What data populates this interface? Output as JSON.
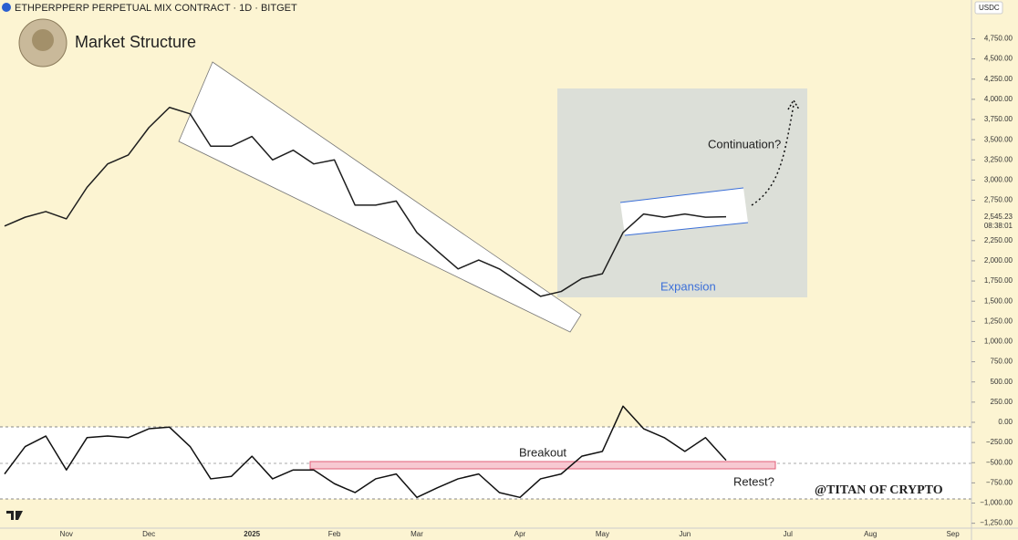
{
  "chart_data": {
    "type": "line",
    "title": "ETHPERPPERP PERPETUAL MIX CONTRACT · 1D · BITGET",
    "subtitle": "Market Structure",
    "currency": "USDC",
    "annotations": {
      "continuation": "Continuation?",
      "expansion": "Expansion",
      "breakout": "Breakout",
      "retest": "Retest?",
      "watermark": "@TITAN OF CRYPTO"
    },
    "last_price": {
      "value": 2545.23,
      "label": "2,545.23"
    },
    "countdown": "08:38:01",
    "categories": [
      null,
      null,
      null,
      "Nov",
      null,
      null,
      null,
      "Dec",
      null,
      null,
      null,
      null,
      "2025",
      null,
      null,
      null,
      "Feb",
      null,
      null,
      null,
      "Mar",
      null,
      null,
      null,
      null,
      "Apr",
      null,
      null,
      null,
      "May",
      null,
      null,
      null,
      "Jun",
      null,
      null,
      null,
      null,
      "Jul",
      null,
      null,
      null,
      "Aug",
      null,
      null,
      null,
      "Sep"
    ],
    "series": [
      {
        "name": "Price",
        "color": "#1e1e1e",
        "values": [
          2430,
          2540,
          2610,
          2520,
          2910,
          3200,
          3310,
          3650,
          3900,
          3820,
          3420,
          3420,
          3540,
          3250,
          3370,
          3200,
          3250,
          2690,
          2690,
          2740,
          2350,
          2120,
          1900,
          2010,
          1900,
          1730,
          1560,
          1620,
          1780,
          1840,
          2350,
          2580,
          2540,
          2580,
          2540,
          2545,
          null,
          null,
          null,
          null,
          null,
          null,
          null,
          null,
          null,
          null,
          null
        ]
      },
      {
        "name": "Oscillator",
        "color": "#111111",
        "values": [
          -640,
          -300,
          -170,
          -590,
          -190,
          -170,
          -190,
          -80,
          -60,
          -300,
          -700,
          -670,
          -420,
          -700,
          -590,
          -590,
          -760,
          -870,
          -700,
          -640,
          -930,
          -810,
          -700,
          -640,
          -870,
          -930,
          -700,
          -640,
          -420,
          -360,
          200,
          -80,
          -190,
          -360,
          -190,
          -470,
          null,
          null,
          null,
          null,
          null,
          null,
          null,
          null,
          null,
          null,
          null
        ]
      }
    ],
    "ylim": [
      -1322,
      5230
    ],
    "yticks": [
      {
        "value": 4750,
        "label": "4,750.00"
      },
      {
        "value": 4500,
        "label": "4,500.00"
      },
      {
        "value": 4250,
        "label": "4,250.00"
      },
      {
        "value": 4000,
        "label": "4,000.00"
      },
      {
        "value": 3750,
        "label": "3,750.00"
      },
      {
        "value": 3500,
        "label": "3,500.00"
      },
      {
        "value": 3250,
        "label": "3,250.00"
      },
      {
        "value": 3000,
        "label": "3,000.00"
      },
      {
        "value": 2750,
        "label": "2,750.00"
      },
      {
        "value": 2250,
        "label": "2,250.00"
      },
      {
        "value": 2000,
        "label": "2,000.00"
      },
      {
        "value": 1750,
        "label": "1,750.00"
      },
      {
        "value": 1500,
        "label": "1,500.00"
      },
      {
        "value": 1250,
        "label": "1,250.00"
      },
      {
        "value": 1000,
        "label": "1,000.00"
      },
      {
        "value": 750,
        "label": "750.00"
      },
      {
        "value": 500,
        "label": "500.00"
      },
      {
        "value": 250,
        "label": "250.00"
      },
      {
        "value": 0,
        "label": "0.00"
      },
      {
        "value": -250,
        "label": "−250.00"
      },
      {
        "value": -500,
        "label": "−500.00"
      },
      {
        "value": -750,
        "label": "−750.00"
      },
      {
        "value": -1000,
        "label": "−1,000.00"
      },
      {
        "value": -1250,
        "label": "−1,250.00"
      }
    ]
  }
}
